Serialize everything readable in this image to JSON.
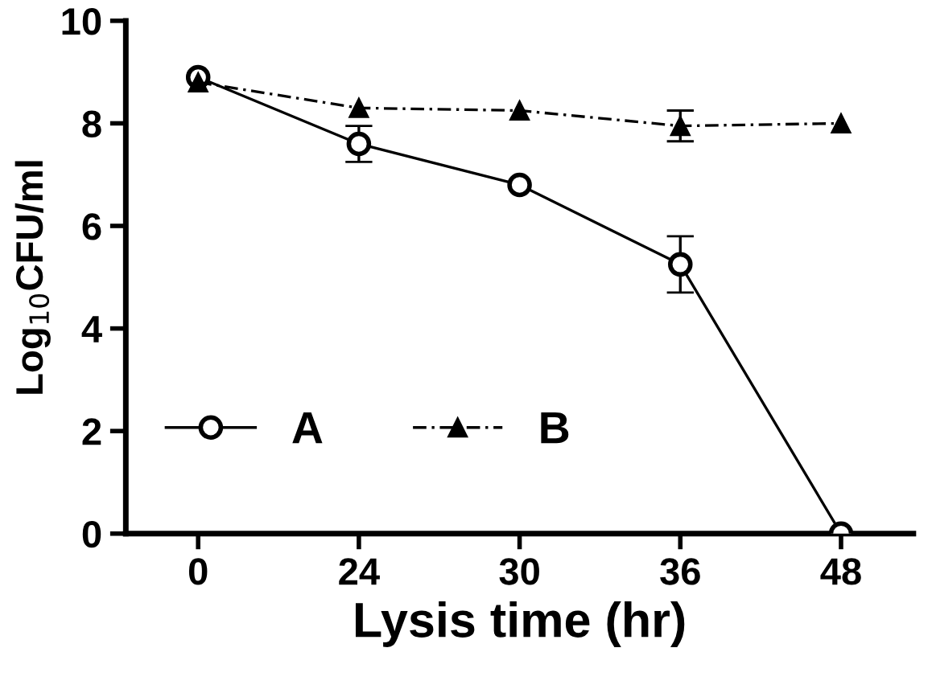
{
  "chart_data": {
    "type": "line",
    "xlabel": "Lysis time (hr)",
    "ylabel": "Log$_{10}$CFU/ml",
    "categories": [
      "0",
      "24",
      "30",
      "36",
      "48"
    ],
    "series": [
      {
        "name": "A",
        "color": "#000000",
        "marker": "circle",
        "line_style": "solid",
        "values": [
          8.9,
          7.6,
          6.8,
          5.25,
          0
        ],
        "errors": [
          null,
          0.35,
          null,
          0.55,
          null
        ]
      },
      {
        "name": "B",
        "color": "#000000",
        "marker": "triangle",
        "line_style": "dashed",
        "values": [
          8.8,
          8.3,
          8.25,
          7.95,
          8.0
        ],
        "errors": [
          null,
          null,
          null,
          0.3,
          null
        ]
      }
    ],
    "ylim": [
      0,
      10
    ],
    "yticks": [
      0,
      2,
      4,
      6,
      8,
      10
    ],
    "grid": false,
    "legend": "bottom left"
  }
}
